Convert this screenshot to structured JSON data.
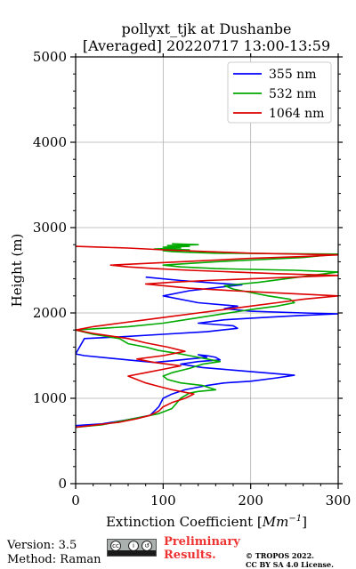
{
  "chart_data": {
    "type": "line",
    "title": [
      "pollyxt_tjk at Dushanbe",
      "[Averaged] 20220717 13:00-13:59"
    ],
    "xlabel_text": "Extinction Coefficient [",
    "xlabel_unit": "Mm",
    "xlabel_exp": "−1",
    "xlabel_close": "]",
    "ylabel": "Height (m)",
    "xlim": [
      0,
      300
    ],
    "ylim": [
      0,
      5000
    ],
    "xticks": [
      0,
      100,
      200,
      300
    ],
    "yticks": [
      0,
      1000,
      2000,
      3000,
      4000,
      5000
    ],
    "grid": true,
    "legend_position": "top-right",
    "series": [
      {
        "name": "355 nm",
        "color": "#0000ff",
        "x": [
          0,
          30,
          60,
          85,
          95,
          100,
          110,
          125,
          150,
          170,
          200,
          230,
          250,
          215,
          180,
          145,
          120,
          140,
          165,
          160,
          150,
          140,
          150,
          130,
          110,
          100,
          90,
          70,
          40,
          10,
          0,
          10,
          50,
          100,
          150,
          185,
          180,
          140,
          170,
          220,
          255,
          300,
          260,
          200,
          170,
          185,
          140,
          100,
          130,
          190,
          160,
          120,
          80
        ],
        "y": [
          680,
          700,
          750,
          800,
          900,
          1000,
          1050,
          1100,
          1150,
          1180,
          1200,
          1240,
          1270,
          1300,
          1330,
          1360,
          1400,
          1430,
          1450,
          1480,
          1500,
          1510,
          1480,
          1460,
          1440,
          1430,
          1420,
          1440,
          1470,
          1500,
          1520,
          1700,
          1720,
          1750,
          1780,
          1820,
          1850,
          1880,
          1920,
          1950,
          1970,
          1990,
          2000,
          2020,
          2050,
          2080,
          2120,
          2200,
          2260,
          2330,
          2350,
          2380,
          2420
        ]
      },
      {
        "name": "532 nm",
        "color": "#00aa00",
        "x": [
          0,
          30,
          55,
          75,
          95,
          110,
          115,
          120,
          130,
          140,
          160,
          145,
          120,
          105,
          100,
          110,
          130,
          145,
          165,
          140,
          120,
          95,
          80,
          60,
          50,
          20,
          0,
          30,
          60,
          100,
          125,
          150,
          175,
          200,
          230,
          250,
          245,
          220,
          200,
          180,
          170,
          210,
          240,
          270,
          300,
          250,
          200,
          160,
          120,
          100,
          130,
          160,
          200,
          260,
          300,
          160,
          130,
          110,
          100,
          130,
          90,
          120,
          100,
          130,
          105,
          140,
          110
        ],
        "y": [
          660,
          690,
          740,
          780,
          820,
          880,
          940,
          1000,
          1060,
          1080,
          1100,
          1150,
          1180,
          1220,
          1260,
          1300,
          1350,
          1400,
          1430,
          1480,
          1520,
          1560,
          1600,
          1640,
          1700,
          1750,
          1800,
          1820,
          1840,
          1880,
          1920,
          1960,
          2000,
          2040,
          2080,
          2120,
          2160,
          2200,
          2240,
          2280,
          2320,
          2360,
          2400,
          2440,
          2480,
          2500,
          2510,
          2520,
          2540,
          2560,
          2580,
          2600,
          2620,
          2650,
          2690,
          2700,
          2710,
          2720,
          2730,
          2740,
          2750,
          2760,
          2770,
          2780,
          2790,
          2800,
          2810
        ]
      },
      {
        "name": "1064 nm",
        "color": "#dd0000",
        "x": [
          0,
          25,
          50,
          70,
          85,
          95,
          100,
          110,
          125,
          135,
          110,
          95,
          80,
          70,
          60,
          80,
          100,
          120,
          105,
          90,
          80,
          70,
          100,
          125,
          105,
          80,
          60,
          40,
          20,
          0,
          20,
          50,
          80,
          110,
          140,
          170,
          200,
          230,
          260,
          300,
          240,
          180,
          130,
          100,
          80,
          110,
          150,
          200,
          250,
          300,
          230,
          180,
          130,
          90,
          60,
          40,
          80,
          120,
          160,
          200,
          260,
          300,
          200,
          150,
          100,
          60,
          30,
          0
        ],
        "y": [
          660,
          690,
          720,
          760,
          800,
          850,
          900,
          950,
          1000,
          1050,
          1100,
          1140,
          1180,
          1220,
          1260,
          1300,
          1340,
          1380,
          1400,
          1420,
          1440,
          1460,
          1500,
          1550,
          1600,
          1650,
          1700,
          1730,
          1760,
          1800,
          1840,
          1880,
          1920,
          1960,
          2000,
          2040,
          2080,
          2120,
          2160,
          2200,
          2230,
          2260,
          2290,
          2320,
          2340,
          2360,
          2380,
          2400,
          2420,
          2440,
          2460,
          2480,
          2500,
          2520,
          2540,
          2560,
          2580,
          2600,
          2620,
          2640,
          2660,
          2680,
          2700,
          2720,
          2740,
          2760,
          2770,
          2780
        ]
      }
    ]
  },
  "footer": {
    "version": "Version: 3.5",
    "method": "Method: Raman",
    "prelim_1": "Preliminary",
    "prelim_2": "Results.",
    "copyright_1": "© TROPOS 2022.",
    "copyright_2": "CC BY SA 4.0 License."
  }
}
